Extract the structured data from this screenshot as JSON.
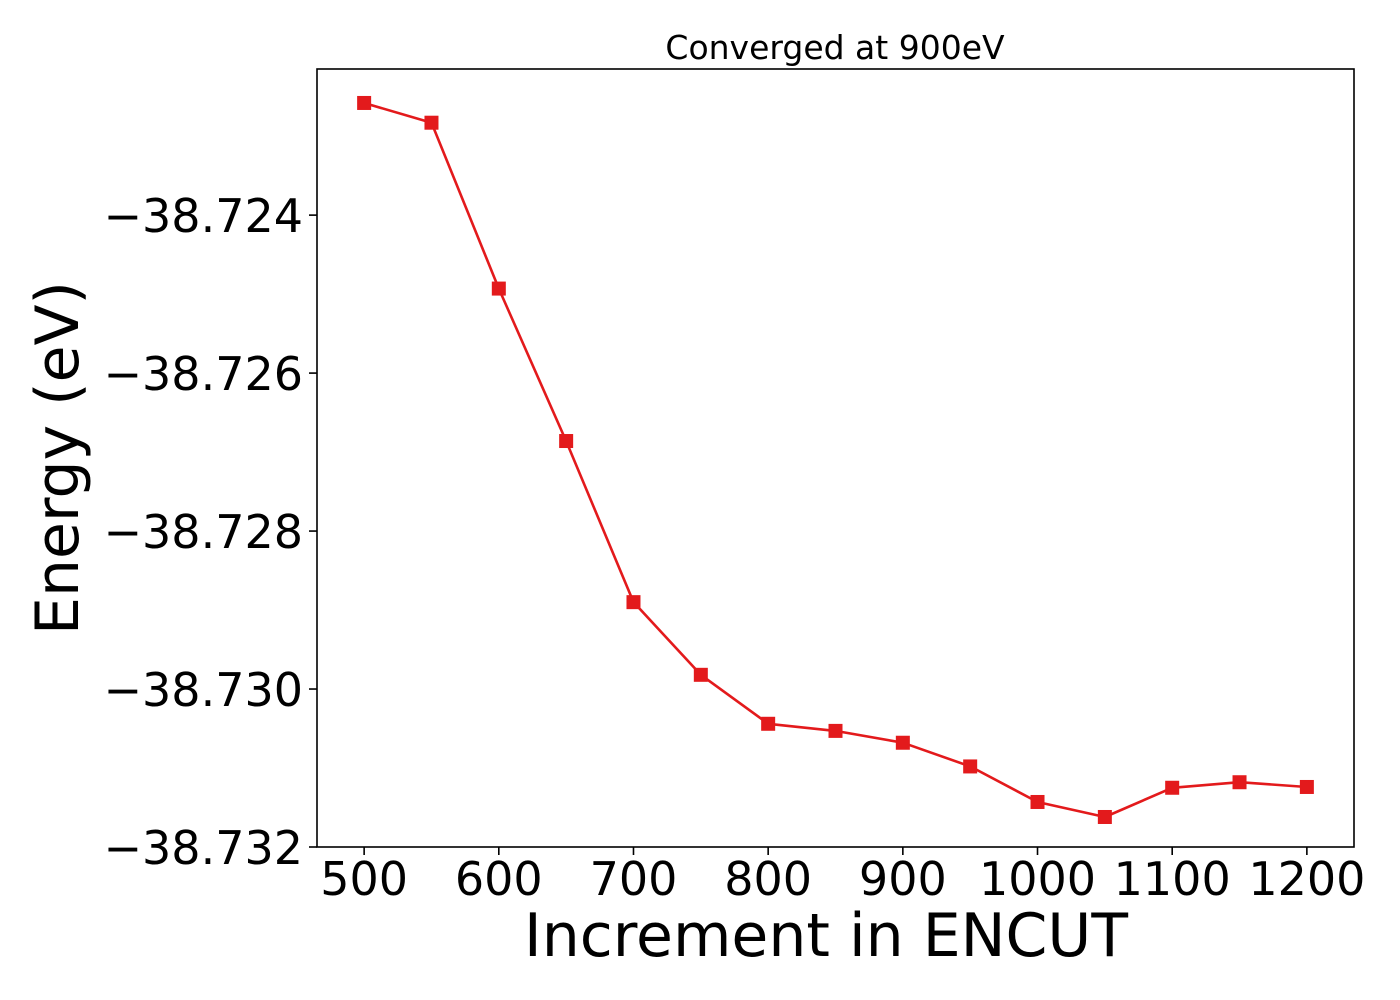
{
  "chart_data": {
    "type": "line",
    "title": "Converged at 900eV",
    "xlabel": "Increment in ENCUT",
    "ylabel": "Energy (eV)",
    "x": [
      500,
      550,
      600,
      650,
      700,
      750,
      800,
      850,
      900,
      950,
      1000,
      1050,
      1100,
      1150,
      1200
    ],
    "series": [
      {
        "values": [
          -38.72258,
          -38.72283,
          -38.72493,
          -38.72686,
          -38.7289,
          -38.72982,
          -38.73044,
          -38.73053,
          -38.73068,
          -38.73098,
          -38.73143,
          -38.73162,
          -38.73125,
          -38.73118,
          -38.73124
        ],
        "color": "#e31a1c",
        "marker": "square"
      }
    ],
    "xticks": [
      500,
      600,
      700,
      800,
      900,
      1000,
      1100,
      1200
    ],
    "xtick_labels": [
      "500",
      "600",
      "700",
      "800",
      "900",
      "1000",
      "1100",
      "1200"
    ],
    "yticks": [
      -38.724,
      -38.726,
      -38.728,
      -38.73,
      -38.732
    ],
    "ytick_labels": [
      "−38.724",
      "−38.726",
      "−38.728",
      "−38.730",
      "−38.732"
    ],
    "xlim": [
      465,
      1235
    ],
    "ylim": [
      -38.732,
      -38.72215
    ],
    "grid": false,
    "legend": "none"
  }
}
